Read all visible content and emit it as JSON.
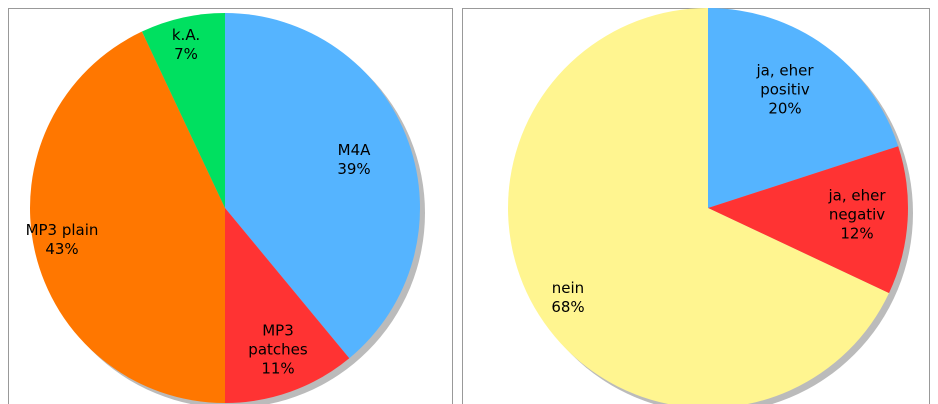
{
  "chart_data": [
    {
      "type": "pie",
      "categories": [
        "M4A",
        "MP3 patches",
        "MP3 plain",
        "k.A."
      ],
      "values": [
        39,
        11,
        43,
        7
      ],
      "value_labels": [
        "39%",
        "11%",
        "43%",
        "7%"
      ],
      "colors": [
        "#55b4ff",
        "#ff3333",
        "#ff7700",
        "#00e060"
      ]
    },
    {
      "type": "pie",
      "categories": [
        "ja, eher positiv",
        "ja, eher negativ",
        "nein"
      ],
      "values": [
        20,
        12,
        68
      ],
      "value_labels": [
        "20%",
        "12%",
        "68%"
      ],
      "colors": [
        "#55b4ff",
        "#ff3333",
        "#fff590"
      ]
    }
  ]
}
